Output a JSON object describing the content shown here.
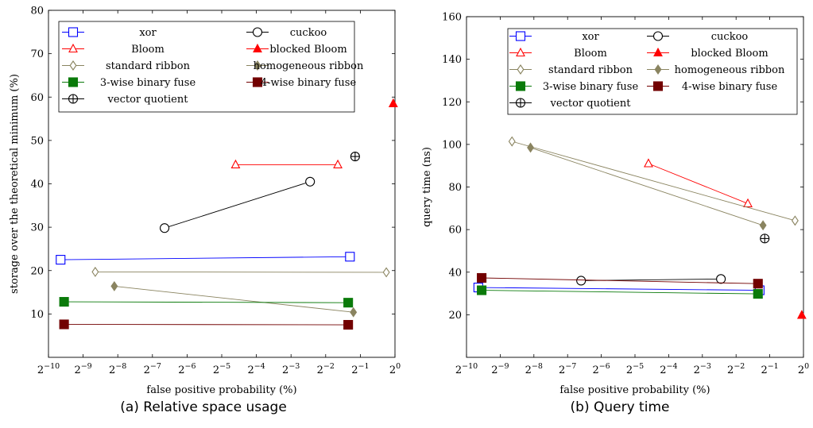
{
  "chart_data": [
    {
      "type": "line",
      "caption": "(a) Relative space usage",
      "xlabel": "false positive probability (%)",
      "ylabel": "storage over the theoretical minimum (%)",
      "x_scale": "log2",
      "xlim": [
        -10,
        0
      ],
      "ylim": [
        0,
        80
      ],
      "x_ticks": [
        {
          "base": "2",
          "exp": "−10",
          "v": -10
        },
        {
          "base": "2",
          "exp": "−9",
          "v": -9
        },
        {
          "base": "2",
          "exp": "−8",
          "v": -8
        },
        {
          "base": "2",
          "exp": "−7",
          "v": -7
        },
        {
          "base": "2",
          "exp": "−6",
          "v": -6
        },
        {
          "base": "2",
          "exp": "−5",
          "v": -5
        },
        {
          "base": "2",
          "exp": "−4",
          "v": -4
        },
        {
          "base": "2",
          "exp": "−3",
          "v": -3
        },
        {
          "base": "2",
          "exp": "−2",
          "v": -2
        },
        {
          "base": "2",
          "exp": "−1",
          "v": -1
        },
        {
          "base": "2",
          "exp": "0",
          "v": 0
        }
      ],
      "y_ticks": [
        "10",
        "20",
        "30",
        "40",
        "50",
        "60",
        "70",
        "80"
      ],
      "grid": false,
      "legend_position": "top-left",
      "series": [
        {
          "name": "xor",
          "color": "#0000ff",
          "marker": "square-open",
          "log2_x": [
            -9.65,
            -1.3
          ],
          "y": [
            22.5,
            23.2
          ]
        },
        {
          "name": "cuckoo",
          "color": "#000000",
          "marker": "circle-open",
          "log2_x": [
            -6.65,
            -2.45
          ],
          "y": [
            29.8,
            40.5
          ]
        },
        {
          "name": "Bloom",
          "color": "#ff0000",
          "marker": "triangle-open",
          "log2_x": [
            -4.6,
            -1.65
          ],
          "y": [
            44.4,
            44.4
          ]
        },
        {
          "name": "blocked Bloom",
          "color": "#ff0000",
          "marker": "triangle-filled",
          "log2_x": [
            -0.05
          ],
          "y": [
            58.5
          ]
        },
        {
          "name": "standard ribbon",
          "color": "#8a8460",
          "marker": "diamond-open",
          "log2_x": [
            -8.65,
            -0.25
          ],
          "y": [
            19.7,
            19.6
          ]
        },
        {
          "name": "homogeneous ribbon",
          "color": "#8a8460",
          "marker": "diamond-filled",
          "log2_x": [
            -8.1,
            -1.2
          ],
          "y": [
            16.4,
            10.4
          ]
        },
        {
          "name": "3-wise binary fuse",
          "color": "#0a7a0a",
          "marker": "square-filled",
          "log2_x": [
            -9.55,
            -1.35
          ],
          "y": [
            12.8,
            12.6
          ]
        },
        {
          "name": "4-wise binary fuse",
          "color": "#720000",
          "marker": "square-filled",
          "log2_x": [
            -9.55,
            -1.35
          ],
          "y": [
            7.6,
            7.5
          ]
        },
        {
          "name": "vector quotient",
          "color": "#000000",
          "marker": "circle-plus",
          "log2_x": [
            -1.15
          ],
          "y": [
            46.3
          ]
        }
      ]
    },
    {
      "type": "line",
      "caption": "(b) Query time",
      "xlabel": "false positive probability (%)",
      "ylabel": "query time (ns)",
      "x_scale": "log2",
      "xlim": [
        -10,
        0
      ],
      "ylim": [
        0,
        160
      ],
      "x_ticks": [
        {
          "base": "2",
          "exp": "−10",
          "v": -10
        },
        {
          "base": "2",
          "exp": "−9",
          "v": -9
        },
        {
          "base": "2",
          "exp": "−8",
          "v": -8
        },
        {
          "base": "2",
          "exp": "−7",
          "v": -7
        },
        {
          "base": "2",
          "exp": "−6",
          "v": -6
        },
        {
          "base": "2",
          "exp": "−5",
          "v": -5
        },
        {
          "base": "2",
          "exp": "−4",
          "v": -4
        },
        {
          "base": "2",
          "exp": "−3",
          "v": -3
        },
        {
          "base": "2",
          "exp": "−2",
          "v": -2
        },
        {
          "base": "2",
          "exp": "−1",
          "v": -1
        },
        {
          "base": "2",
          "exp": "0",
          "v": 0
        }
      ],
      "y_ticks": [
        "20",
        "40",
        "60",
        "80",
        "100",
        "120",
        "140",
        "160"
      ],
      "grid": false,
      "legend_position": "top-right",
      "series": [
        {
          "name": "xor",
          "color": "#0000ff",
          "marker": "square-open",
          "log2_x": [
            -9.65,
            -1.3
          ],
          "y": [
            32.8,
            31.5
          ]
        },
        {
          "name": "cuckoo",
          "color": "#000000",
          "marker": "circle-open",
          "log2_x": [
            -6.6,
            -2.45
          ],
          "y": [
            36.0,
            36.8
          ]
        },
        {
          "name": "Bloom",
          "color": "#ff0000",
          "marker": "triangle-open",
          "log2_x": [
            -4.6,
            -1.65
          ],
          "y": [
            91.0,
            72.2
          ]
        },
        {
          "name": "blocked Bloom",
          "color": "#ff0000",
          "marker": "triangle-filled",
          "log2_x": [
            -0.05
          ],
          "y": [
            19.8
          ]
        },
        {
          "name": "standard ribbon",
          "color": "#8a8460",
          "marker": "diamond-open",
          "log2_x": [
            -8.65,
            -0.25
          ],
          "y": [
            101.4,
            64.2
          ]
        },
        {
          "name": "homogeneous ribbon",
          "color": "#8a8460",
          "marker": "diamond-filled",
          "log2_x": [
            -8.1,
            -1.2
          ],
          "y": [
            98.5,
            62.0
          ]
        },
        {
          "name": "3-wise binary fuse",
          "color": "#0a7a0a",
          "marker": "square-filled",
          "log2_x": [
            -9.55,
            -1.35
          ],
          "y": [
            31.5,
            29.8
          ]
        },
        {
          "name": "4-wise binary fuse",
          "color": "#720000",
          "marker": "square-filled",
          "log2_x": [
            -9.55,
            -1.35
          ],
          "y": [
            37.3,
            34.6
          ]
        },
        {
          "name": "vector quotient",
          "color": "#000000",
          "marker": "circle-plus",
          "log2_x": [
            -1.15
          ],
          "y": [
            55.8
          ]
        }
      ]
    }
  ]
}
